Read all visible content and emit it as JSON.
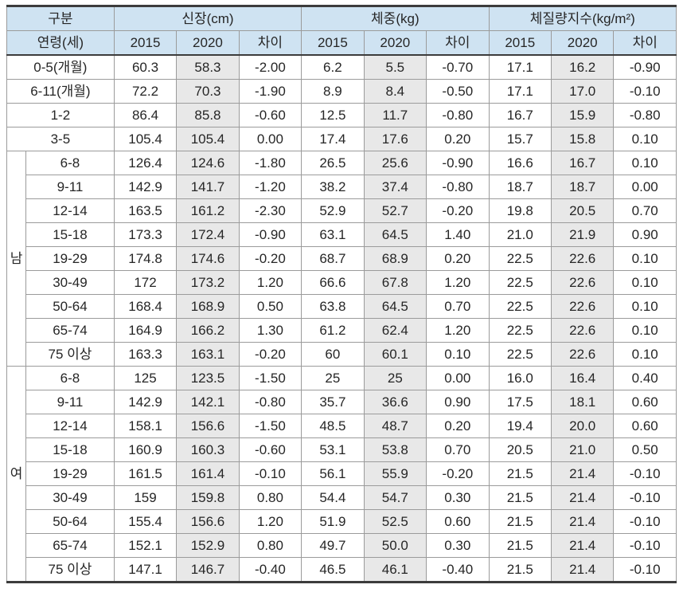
{
  "table": {
    "colors": {
      "header_bg": "#cfe3f2",
      "shaded_column_bg": "#e8e8e8",
      "outer_border": "#3c3c3c",
      "inner_border": "#9b9b9b",
      "text": "#262626"
    },
    "header": {
      "col1_row1": "구분",
      "col1_row2": "연령(세)",
      "groups": [
        {
          "label": "신장(cm)"
        },
        {
          "label": "체중(kg)"
        },
        {
          "label": "체질량지수(kg/m²)"
        }
      ],
      "sub_columns": [
        "2015",
        "2020",
        "차이"
      ]
    },
    "sections": [
      {
        "gender": "",
        "rows": [
          {
            "age": "0-5(개월)",
            "values": [
              "60.3",
              "58.3",
              "-2.00",
              "6.2",
              "5.5",
              "-0.70",
              "17.1",
              "16.2",
              "-0.90"
            ]
          },
          {
            "age": "6-11(개월)",
            "values": [
              "72.2",
              "70.3",
              "-1.90",
              "8.9",
              "8.4",
              "-0.50",
              "17.1",
              "17.0",
              "-0.10"
            ]
          },
          {
            "age": "1-2",
            "values": [
              "86.4",
              "85.8",
              "-0.60",
              "12.5",
              "11.7",
              "-0.80",
              "16.7",
              "15.9",
              "-0.80"
            ]
          },
          {
            "age": "3-5",
            "values": [
              "105.4",
              "105.4",
              "0.00",
              "17.4",
              "17.6",
              "0.20",
              "15.7",
              "15.8",
              "0.10"
            ]
          }
        ]
      },
      {
        "gender": "남",
        "rows": [
          {
            "age": "6-8",
            "values": [
              "126.4",
              "124.6",
              "-1.80",
              "26.5",
              "25.6",
              "-0.90",
              "16.6",
              "16.7",
              "0.10"
            ]
          },
          {
            "age": "9-11",
            "values": [
              "142.9",
              "141.7",
              "-1.20",
              "38.2",
              "37.4",
              "-0.80",
              "18.7",
              "18.7",
              "0.00"
            ]
          },
          {
            "age": "12-14",
            "values": [
              "163.5",
              "161.2",
              "-2.30",
              "52.9",
              "52.7",
              "-0.20",
              "19.8",
              "20.5",
              "0.70"
            ]
          },
          {
            "age": "15-18",
            "values": [
              "173.3",
              "172.4",
              "-0.90",
              "63.1",
              "64.5",
              "1.40",
              "21.0",
              "21.9",
              "0.90"
            ]
          },
          {
            "age": "19-29",
            "values": [
              "174.8",
              "174.6",
              "-0.20",
              "68.7",
              "68.9",
              "0.20",
              "22.5",
              "22.6",
              "0.10"
            ]
          },
          {
            "age": "30-49",
            "values": [
              "172",
              "173.2",
              "1.20",
              "66.6",
              "67.8",
              "1.20",
              "22.5",
              "22.6",
              "0.10"
            ]
          },
          {
            "age": "50-64",
            "values": [
              "168.4",
              "168.9",
              "0.50",
              "63.8",
              "64.5",
              "0.70",
              "22.5",
              "22.6",
              "0.10"
            ]
          },
          {
            "age": "65-74",
            "values": [
              "164.9",
              "166.2",
              "1.30",
              "61.2",
              "62.4",
              "1.20",
              "22.5",
              "22.6",
              "0.10"
            ]
          },
          {
            "age": "75 이상",
            "values": [
              "163.3",
              "163.1",
              "-0.20",
              "60",
              "60.1",
              "0.10",
              "22.5",
              "22.6",
              "0.10"
            ]
          }
        ]
      },
      {
        "gender": "여",
        "rows": [
          {
            "age": "6-8",
            "values": [
              "125",
              "123.5",
              "-1.50",
              "25",
              "25",
              "0.00",
              "16.0",
              "16.4",
              "0.40"
            ]
          },
          {
            "age": "9-11",
            "values": [
              "142.9",
              "142.1",
              "-0.80",
              "35.7",
              "36.6",
              "0.90",
              "17.5",
              "18.1",
              "0.60"
            ]
          },
          {
            "age": "12-14",
            "values": [
              "158.1",
              "156.6",
              "-1.50",
              "48.5",
              "48.7",
              "0.20",
              "19.4",
              "20.0",
              "0.60"
            ]
          },
          {
            "age": "15-18",
            "values": [
              "160.9",
              "160.3",
              "-0.60",
              "53.1",
              "53.8",
              "0.70",
              "20.5",
              "21.0",
              "0.50"
            ]
          },
          {
            "age": "19-29",
            "values": [
              "161.5",
              "161.4",
              "-0.10",
              "56.1",
              "55.9",
              "-0.20",
              "21.5",
              "21.4",
              "-0.10"
            ]
          },
          {
            "age": "30-49",
            "values": [
              "159",
              "159.8",
              "0.80",
              "54.4",
              "54.7",
              "0.30",
              "21.5",
              "21.4",
              "-0.10"
            ]
          },
          {
            "age": "50-64",
            "values": [
              "155.4",
              "156.6",
              "1.20",
              "51.9",
              "52.5",
              "0.60",
              "21.5",
              "21.4",
              "-0.10"
            ]
          },
          {
            "age": "65-74",
            "values": [
              "152.1",
              "152.9",
              "0.80",
              "49.7",
              "50.0",
              "0.30",
              "21.5",
              "21.4",
              "-0.10"
            ]
          },
          {
            "age": "75 이상",
            "values": [
              "147.1",
              "146.7",
              "-0.40",
              "46.5",
              "46.1",
              "-0.40",
              "21.5",
              "21.4",
              "-0.10"
            ]
          }
        ]
      }
    ]
  }
}
